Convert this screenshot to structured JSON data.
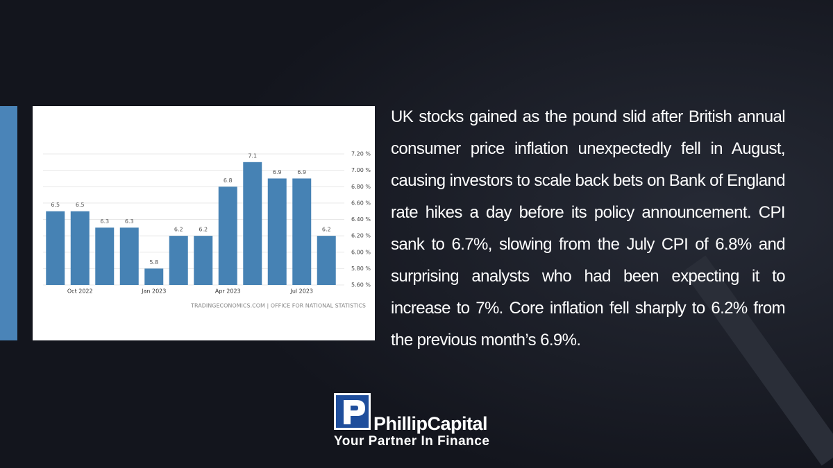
{
  "chart_data": {
    "type": "bar",
    "categories": [
      null,
      "Oct 2022",
      null,
      null,
      "Jan 2023",
      null,
      null,
      "Apr 2023",
      null,
      null,
      "Jul 2023",
      null
    ],
    "values": [
      6.5,
      6.5,
      6.3,
      6.3,
      5.8,
      6.2,
      6.2,
      6.8,
      7.1,
      6.9,
      6.9,
      6.2
    ],
    "color": "#4682b4",
    "ylim": [
      5.6,
      7.2
    ],
    "yticks": [
      {
        "value": 5.6,
        "label": "5.60 %"
      },
      {
        "value": 5.8,
        "label": "5.80 %"
      },
      {
        "value": 6.0,
        "label": "6.00 %"
      },
      {
        "value": 6.2,
        "label": "6.20 %"
      },
      {
        "value": 6.4,
        "label": "6.40 %"
      },
      {
        "value": 6.6,
        "label": "6.60 %"
      },
      {
        "value": 6.8,
        "label": "6.80 %"
      },
      {
        "value": 7.0,
        "label": "7.00 %"
      },
      {
        "value": 7.2,
        "label": "7.20 %"
      }
    ],
    "grid": true,
    "source": "TRADINGECONOMICS.COM | OFFICE FOR NATIONAL STATISTICS"
  },
  "paragraph": "UK stocks gained as the pound slid after British annual consumer price inflation unexpectedly fell in August, causing investors to scale back bets on Bank of England rate hikes a day before its policy announcement. CPI sank to 6.7%, slowing from the July CPI of 6.8% and surprising analysts who had been expecting it to increase to 7%. Core inflation fell sharply to 6.2% from the previous month’s 6.9%.",
  "logo": {
    "name": "PhillipCapital",
    "tagline": "Your Partner In Finance"
  }
}
